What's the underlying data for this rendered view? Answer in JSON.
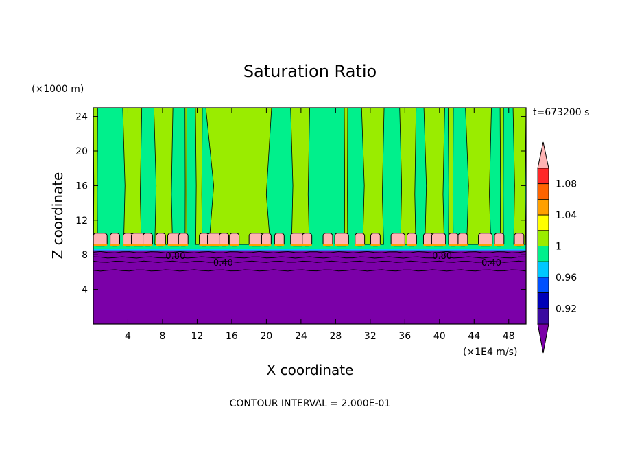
{
  "chart_data": {
    "type": "heatmap",
    "title": "Saturation Ratio",
    "xlabel": "X coordinate",
    "ylabel": "Z coordinate",
    "x_unit": "(×1E4 m/s)",
    "y_unit": "(×1000 m)",
    "time_label": "t=673200 s",
    "footer": "CONTOUR INTERVAL = 2.000E-01",
    "xlim": [
      0,
      50
    ],
    "ylim": [
      0,
      25
    ],
    "x_ticks": [
      "4",
      "8",
      "12",
      "16",
      "20",
      "24",
      "28",
      "32",
      "36",
      "40",
      "44",
      "48"
    ],
    "y_ticks": [
      "4",
      "8",
      "12",
      "16",
      "20",
      "24"
    ],
    "contour_labels": [
      "0.80",
      "0.40",
      "0.80",
      "0.40"
    ],
    "colorbar": {
      "labels": [
        "1.08",
        "1.04",
        "1",
        "0.96",
        "0.92"
      ],
      "colors": [
        "#7b00a8",
        "#3a0aa0",
        "#0000b8",
        "#0050ff",
        "#00c8ff",
        "#00f08c",
        "#9aec00",
        "#ffff00",
        "#ffa000",
        "#ff6400",
        "#ff2828",
        "#ffb4b4"
      ]
    },
    "regions": [
      {
        "name": "lower-layer",
        "value": "< 0.90",
        "z_range": [
          0,
          8.6
        ],
        "color": "#7b00a8"
      },
      {
        "name": "mid-layer",
        "value": "0.98-1.00",
        "z_range": [
          8.6,
          25
        ],
        "color": "#00f08c"
      },
      {
        "name": "bands",
        "value": "1.00-1.02",
        "color": "#9aec00"
      },
      {
        "name": "supersaturated-blobs",
        "value": "> 1.08",
        "z_range": [
          9.0,
          10.5
        ],
        "color": "#ffb4b4"
      }
    ]
  }
}
